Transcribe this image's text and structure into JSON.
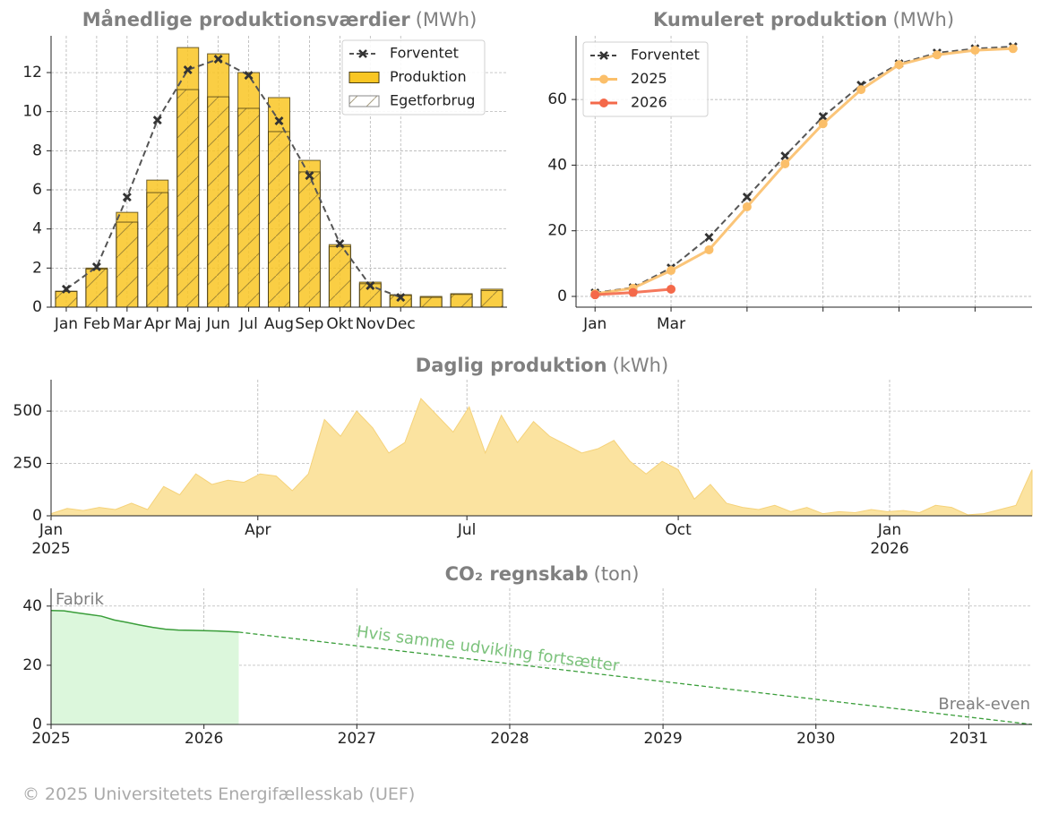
{
  "chart_data": [
    {
      "type": "bar",
      "title": "Månedlige produktionsværdier",
      "unit": "(MWh)",
      "categories": [
        "Jan",
        "Feb",
        "Mar",
        "Apr",
        "Maj",
        "Jun",
        "Jul",
        "Aug",
        "Sep",
        "Okt",
        "Nov",
        "Dec",
        null,
        null,
        null
      ],
      "series": [
        {
          "name": "Forventet",
          "type": "line",
          "color": "#555555",
          "values": [
            0.92,
            2.06,
            5.63,
            9.57,
            12.14,
            12.69,
            11.86,
            9.53,
            6.73,
            3.25,
            1.1,
            0.5,
            null,
            null,
            null
          ]
        },
        {
          "name": "Produktion",
          "type": "bar",
          "color": "#f9c623",
          "values": [
            0.82,
            2.0,
            4.85,
            6.5,
            13.28,
            12.96,
            12.0,
            10.72,
            7.51,
            3.2,
            1.28,
            0.64,
            0.55,
            0.69,
            0.92
          ]
        },
        {
          "name": "Egetforbrug",
          "type": "hatch",
          "color": "#888888",
          "values": [
            0.8,
            1.95,
            4.35,
            5.86,
            11.13,
            10.76,
            10.17,
            8.98,
            6.92,
            3.1,
            1.2,
            0.6,
            0.5,
            0.65,
            0.85
          ]
        }
      ],
      "ylim": [
        0,
        13.88
      ],
      "yticks": [
        0,
        2,
        4,
        6,
        8,
        10,
        12
      ],
      "grid": true,
      "legend": "upper right"
    },
    {
      "type": "line",
      "title": "Kumuleret produktion",
      "unit": "(MWh)",
      "categories": [
        "Jan",
        null,
        "Mar",
        null,
        null,
        null,
        null,
        null,
        null,
        null,
        null,
        null
      ],
      "series": [
        {
          "name": "Forventet",
          "color": "#444444",
          "marker": "x",
          "dashed": true,
          "values": [
            1.1,
            2.7,
            8.7,
            18.0,
            30.3,
            42.8,
            54.8,
            64.4,
            70.9,
            74.2,
            75.5,
            76.1
          ]
        },
        {
          "name": "2025",
          "color": "#fbbf6a",
          "marker": "o",
          "values": [
            0.8,
            2.5,
            7.9,
            14.2,
            27.3,
            40.4,
            52.6,
            63.0,
            70.6,
            73.6,
            75.0,
            75.5
          ]
        },
        {
          "name": "2026",
          "color": "#f4694a",
          "marker": "o",
          "values": [
            0.5,
            1.2,
            2.2,
            null,
            null,
            null,
            null,
            null,
            null,
            null,
            null,
            null
          ]
        }
      ],
      "ylim": [
        -3.27,
        79.4
      ],
      "yticks": [
        0,
        20,
        40,
        60
      ],
      "grid": true,
      "legend": "upper left"
    },
    {
      "type": "area",
      "title": "Daglig produktion",
      "unit": "(kWh)",
      "x": [
        "2025-01-01",
        "2025-01-08",
        "2025-01-15",
        "2025-01-22",
        "2025-01-29",
        "2025-02-05",
        "2025-02-12",
        "2025-02-19",
        "2025-02-26",
        "2025-03-05",
        "2025-03-12",
        "2025-03-19",
        "2025-03-26",
        "2025-04-02",
        "2025-04-09",
        "2025-04-16",
        "2025-04-23",
        "2025-04-30",
        "2025-05-07",
        "2025-05-14",
        "2025-05-21",
        "2025-05-28",
        "2025-06-04",
        "2025-06-11",
        "2025-06-18",
        "2025-06-25",
        "2025-07-02",
        "2025-07-09",
        "2025-07-16",
        "2025-07-23",
        "2025-07-30",
        "2025-08-06",
        "2025-08-13",
        "2025-08-20",
        "2025-08-27",
        "2025-09-03",
        "2025-09-10",
        "2025-09-17",
        "2025-09-24",
        "2025-10-01",
        "2025-10-08",
        "2025-10-15",
        "2025-10-22",
        "2025-10-29",
        "2025-11-05",
        "2025-11-12",
        "2025-11-19",
        "2025-11-26",
        "2025-12-03",
        "2025-12-10",
        "2025-12-17",
        "2025-12-24",
        "2025-12-31",
        "2026-01-07",
        "2026-01-14",
        "2026-01-21",
        "2026-01-28",
        "2026-02-04",
        "2026-02-11",
        "2026-02-18",
        "2026-02-25",
        "2026-03-04"
      ],
      "values": [
        10,
        35,
        25,
        40,
        30,
        60,
        30,
        140,
        100,
        200,
        150,
        170,
        160,
        200,
        190,
        120,
        200,
        460,
        380,
        500,
        420,
        300,
        350,
        560,
        480,
        400,
        520,
        300,
        480,
        350,
        450,
        380,
        340,
        300,
        320,
        360,
        260,
        200,
        260,
        220,
        80,
        150,
        60,
        40,
        30,
        50,
        20,
        40,
        10,
        20,
        15,
        30,
        20,
        25,
        15,
        50,
        40,
        5,
        10,
        30,
        50,
        220
      ],
      "color": "#fbe3a0",
      "xlim": [
        "2025-01-01",
        "2026-03-04"
      ],
      "xticks": [
        {
          "value": "2025-01-01",
          "label": "Jan\n2025"
        },
        {
          "value": "2025-04-01",
          "label": "Apr"
        },
        {
          "value": "2025-07-01",
          "label": "Jul"
        },
        {
          "value": "2025-10-01",
          "label": "Oct"
        },
        {
          "value": "2026-01-01",
          "label": "Jan\n2026"
        }
      ],
      "ylim": [
        0,
        650
      ],
      "yticks": [
        0,
        250,
        500
      ],
      "grid": true
    },
    {
      "type": "area",
      "title": "CO₂ regnskab",
      "unit": "(ton)",
      "series": [
        {
          "x": [
            "2025-01-01",
            "2025-02-01",
            "2025-03-01",
            "2025-04-01",
            "2025-05-01",
            "2025-06-01",
            "2025-07-01",
            "2025-08-01",
            "2025-09-01",
            "2025-10-01",
            "2025-11-01",
            "2025-12-01",
            "2026-01-01",
            "2026-02-01",
            "2026-03-01",
            "2026-03-25"
          ],
          "values": [
            38.5,
            38.4,
            37.8,
            37.2,
            36.6,
            35.3,
            34.5,
            33.6,
            32.8,
            32.2,
            31.9,
            31.8,
            31.7,
            31.6,
            31.4,
            31.2
          ],
          "color": "#3a9e3a",
          "fill": "#dcf7dc"
        },
        {
          "x": [
            "2026-03-25",
            "2031-06-01"
          ],
          "values": [
            31.2,
            0
          ],
          "color": "#3a9e3a",
          "dashed": true
        }
      ],
      "annotations": [
        "Fabrik",
        "Hvis samme udvikling fortsætter",
        "Break-even"
      ],
      "xlim": [
        "2025-01-01",
        "2031-06-01"
      ],
      "xticks": [
        {
          "value": "2025-01-01",
          "label": "2025"
        },
        {
          "value": "2026-01-01",
          "label": "2026"
        },
        {
          "value": "2027-01-01",
          "label": "2027"
        },
        {
          "value": "2028-01-01",
          "label": "2028"
        },
        {
          "value": "2029-01-01",
          "label": "2029"
        },
        {
          "value": "2030-01-01",
          "label": "2030"
        },
        {
          "value": "2031-01-01",
          "label": "2031"
        }
      ],
      "ylim": [
        0,
        46
      ],
      "yticks": [
        0,
        20,
        40
      ],
      "grid": true
    }
  ],
  "footer": "© 2025 Universitetets Energifællesskab (UEF)"
}
